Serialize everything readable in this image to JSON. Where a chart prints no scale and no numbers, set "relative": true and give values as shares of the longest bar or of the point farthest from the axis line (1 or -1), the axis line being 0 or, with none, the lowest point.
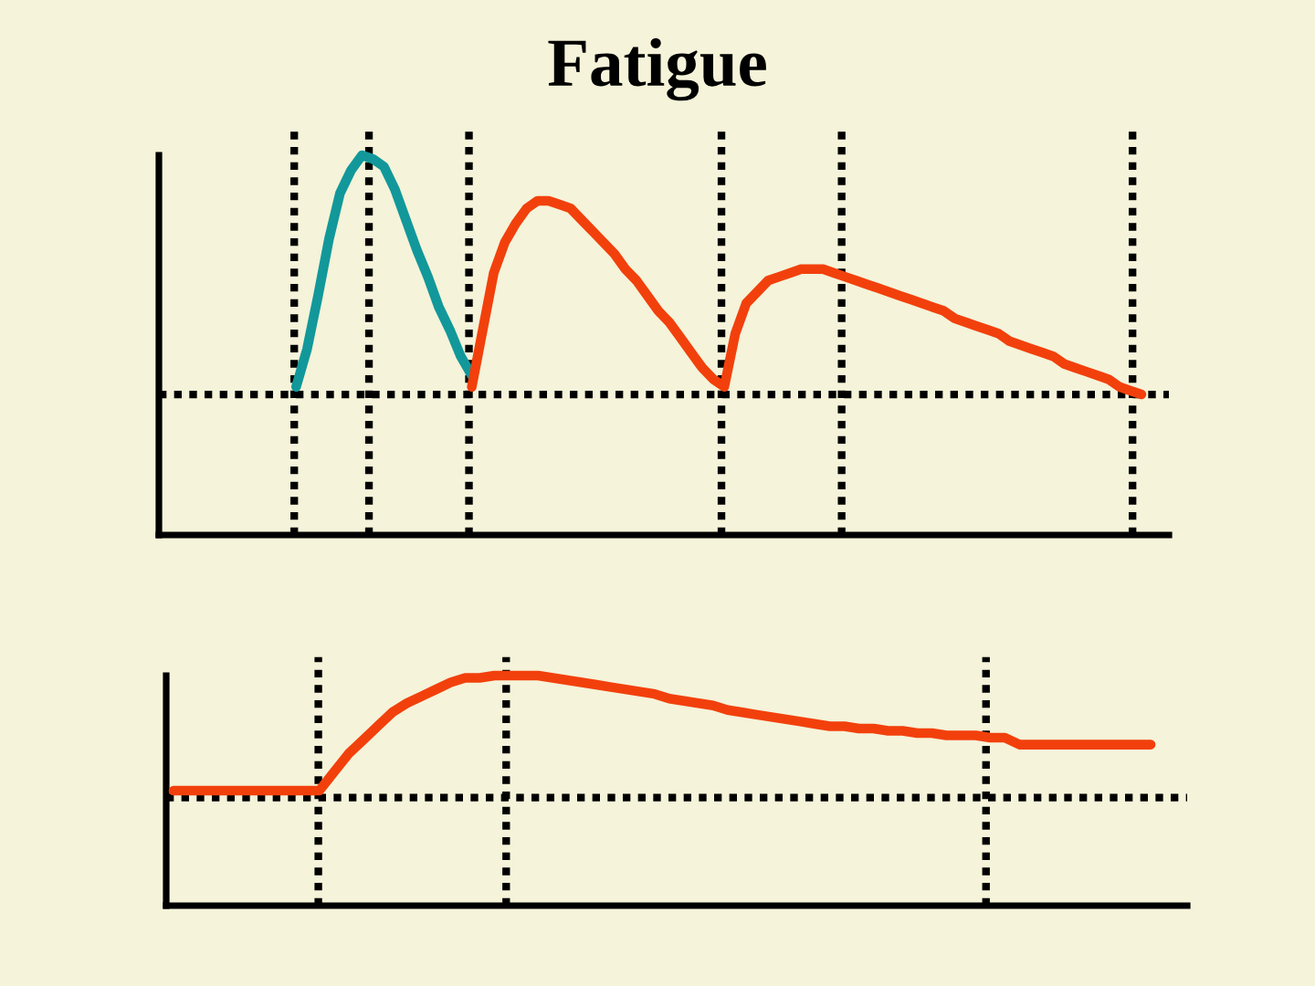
{
  "chart_data": [
    {
      "type": "line",
      "title": "Fatigue",
      "relative": true,
      "tick_labels": false,
      "categories": [
        null,
        null,
        null,
        null,
        null,
        null,
        null,
        null,
        null,
        null,
        null,
        null,
        null,
        null,
        null,
        null,
        null,
        null,
        null,
        null,
        null,
        null,
        null,
        null,
        null,
        null,
        null,
        null,
        null,
        null,
        null,
        null,
        null,
        null,
        null,
        null,
        null,
        null,
        null,
        null,
        null,
        null,
        null,
        null,
        null,
        null,
        null,
        null,
        null,
        null,
        null,
        null,
        null,
        null,
        null,
        null,
        null,
        null,
        null,
        null,
        null,
        null,
        null,
        null,
        null,
        null,
        null,
        null,
        null,
        null,
        null,
        null,
        null,
        null,
        null,
        null,
        null,
        null,
        null,
        null,
        null,
        null,
        null,
        null,
        null,
        null,
        null,
        null,
        null,
        null,
        null,
        null
      ],
      "series": [
        {
          "color": "#12989a",
          "values": [
            null,
            null,
            null,
            null,
            null,
            null,
            null,
            null,
            null,
            null,
            null,
            null,
            0.39,
            0.49,
            0.63,
            0.78,
            0.9,
            0.96,
            1.0,
            0.99,
            0.97,
            0.91,
            0.83,
            0.75,
            0.68,
            0.6,
            0.54,
            0.47,
            0.42,
            null,
            null,
            null,
            null,
            null,
            null,
            null,
            null,
            null,
            null,
            null,
            null,
            null,
            null,
            null,
            null,
            null,
            null,
            null,
            null,
            null,
            null,
            null,
            null,
            null,
            null,
            null,
            null,
            null,
            null,
            null,
            null,
            null,
            null,
            null,
            null,
            null,
            null,
            null,
            null,
            null,
            null,
            null,
            null,
            null,
            null,
            null,
            null,
            null,
            null,
            null,
            null,
            null,
            null,
            null,
            null,
            null,
            null,
            null,
            null,
            null,
            null,
            null
          ]
        },
        {
          "color": "#f2400c",
          "values": [
            null,
            null,
            null,
            null,
            null,
            null,
            null,
            null,
            null,
            null,
            null,
            null,
            null,
            null,
            null,
            null,
            null,
            null,
            null,
            null,
            null,
            null,
            null,
            null,
            null,
            null,
            null,
            null,
            0.39,
            0.54,
            0.69,
            0.77,
            0.82,
            0.86,
            0.88,
            0.88,
            0.87,
            0.86,
            0.83,
            0.8,
            0.77,
            0.74,
            0.7,
            0.67,
            0.63,
            0.59,
            0.56,
            0.52,
            0.48,
            0.44,
            0.41,
            0.39,
            0.53,
            0.61,
            0.64,
            0.67,
            0.68,
            0.69,
            0.7,
            0.7,
            0.7,
            0.69,
            0.68,
            0.67,
            0.66,
            0.65,
            0.64,
            0.63,
            0.62,
            0.61,
            0.6,
            0.59,
            0.57,
            0.56,
            0.55,
            0.54,
            0.53,
            0.51,
            0.5,
            0.49,
            0.48,
            0.47,
            0.45,
            0.44,
            0.43,
            0.42,
            0.41,
            0.39,
            0.38,
            0.37,
            null,
            null
          ]
        }
      ],
      "ref_lines": [
        {
          "axis": "y",
          "value": 0.37,
          "color": "#000000",
          "line_style": "dotted"
        }
      ]
    },
    {
      "type": "line",
      "relative": true,
      "tick_labels": false,
      "categories": [
        null,
        null,
        null,
        null,
        null,
        null,
        null,
        null,
        null,
        null,
        null,
        null,
        null,
        null,
        null,
        null,
        null,
        null,
        null,
        null,
        null,
        null,
        null,
        null,
        null,
        null,
        null,
        null,
        null,
        null,
        null,
        null,
        null,
        null,
        null,
        null,
        null,
        null,
        null,
        null,
        null,
        null,
        null,
        null,
        null,
        null,
        null,
        null,
        null,
        null,
        null,
        null,
        null,
        null,
        null,
        null,
        null,
        null,
        null,
        null,
        null,
        null,
        null,
        null,
        null,
        null,
        null,
        null,
        null,
        null
      ],
      "series": [
        {
          "color": "#f2400c",
          "values": [
            0.5,
            0.5,
            0.5,
            0.5,
            0.5,
            0.5,
            0.5,
            0.5,
            0.5,
            0.5,
            0.5,
            0.58,
            0.66,
            0.72,
            0.78,
            0.84,
            0.88,
            0.91,
            0.94,
            0.97,
            0.99,
            0.99,
            1.0,
            1.0,
            1.0,
            1.0,
            0.99,
            0.98,
            0.97,
            0.96,
            0.95,
            0.94,
            0.93,
            0.92,
            0.9,
            0.89,
            0.88,
            0.87,
            0.85,
            0.84,
            0.83,
            0.82,
            0.81,
            0.8,
            0.79,
            0.78,
            0.78,
            0.77,
            0.77,
            0.76,
            0.76,
            0.75,
            0.75,
            0.74,
            0.74,
            0.74,
            0.73,
            0.73,
            0.7,
            0.7,
            0.7,
            0.7,
            0.7,
            0.7,
            0.7,
            0.7,
            0.7,
            0.7,
            null,
            null
          ]
        }
      ],
      "ref_lines": [
        {
          "axis": "y",
          "value": 0.47,
          "color": "#000000",
          "line_style": "dotted"
        }
      ]
    }
  ]
}
